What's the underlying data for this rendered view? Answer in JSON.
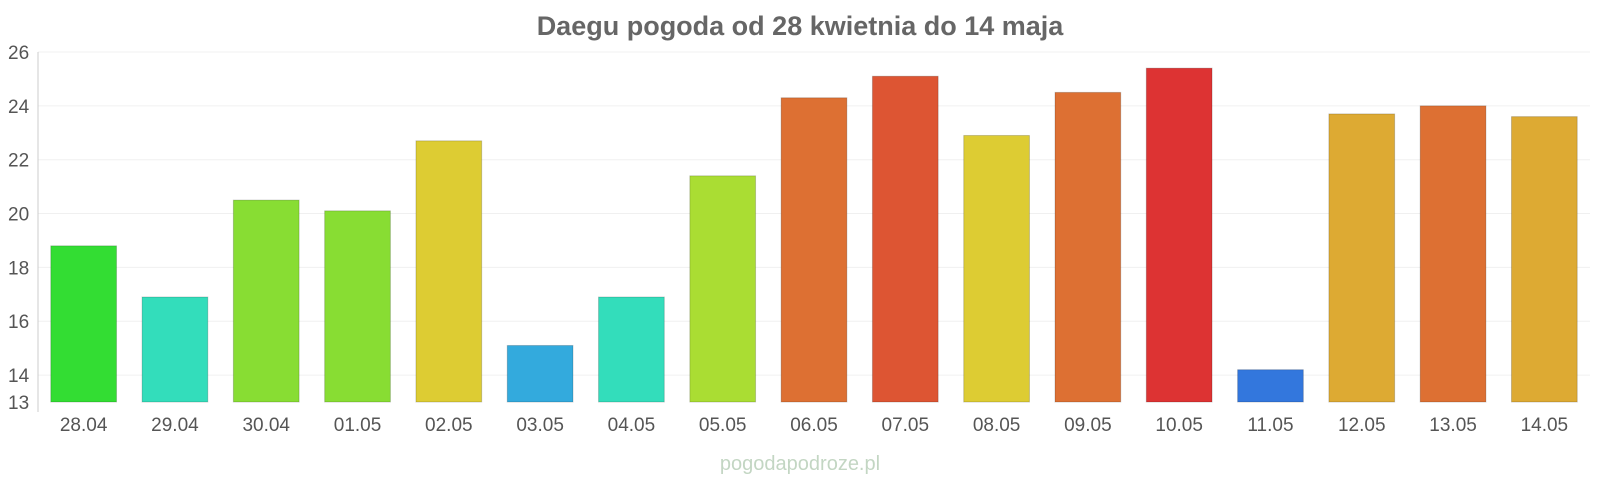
{
  "chart_data": {
    "type": "bar",
    "title": "Daegu pogoda od 28 kwietnia do 14 maja",
    "xlabel": "",
    "ylabel": "",
    "ylim": [
      13,
      26
    ],
    "yticks": [
      13,
      14,
      16,
      18,
      20,
      22,
      24,
      26
    ],
    "grid": true,
    "legend": "none",
    "categories": [
      "28.04",
      "29.04",
      "30.04",
      "01.05",
      "02.05",
      "03.05",
      "04.05",
      "05.05",
      "06.05",
      "07.05",
      "08.05",
      "09.05",
      "10.05",
      "11.05",
      "12.05",
      "13.05",
      "14.05"
    ],
    "values": [
      18.8,
      16.9,
      20.5,
      20.1,
      22.7,
      15.1,
      16.9,
      21.4,
      24.3,
      25.1,
      22.9,
      24.5,
      25.4,
      14.2,
      23.7,
      24.0,
      23.6
    ],
    "colors": [
      "#33dd33",
      "#33ddbb",
      "#88dd33",
      "#88dd33",
      "#ddcc33",
      "#33aadd",
      "#33ddbb",
      "#aadd33",
      "#dd7033",
      "#dd5533",
      "#ddcc33",
      "#dd7033",
      "#dd3333",
      "#3377dd",
      "#ddaa33",
      "#dd7033",
      "#ddaa33"
    ]
  },
  "watermark": "pogodapodroze.pl"
}
